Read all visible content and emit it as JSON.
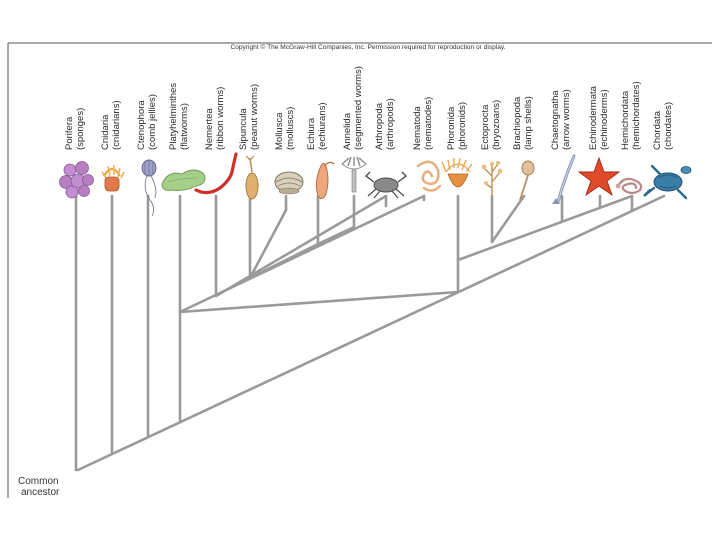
{
  "copyright": "Copyright © The McGraw-Hill Companies, Inc. Permission required for reproduction or display.",
  "root_label": [
    "Common",
    "ancestor"
  ],
  "colors": {
    "branch": "#9a9a9a",
    "frame": "#555555",
    "text": "#2a2a2a",
    "sponge": "#b77fc2",
    "cnidarian": "#e07a4a",
    "ctenophore": "#8d8fb5",
    "flatworm": "#a6cf8a",
    "nemertea": "#cf2f27",
    "sipuncula": "#e0b070",
    "mollusca": "#c9c0a6",
    "echiura": "#eda57c",
    "annelida": "#b8b8b8",
    "arthropoda": "#7d7d7d",
    "nematoda": "#e8b080",
    "phoronida": "#e69040",
    "ectoprocta": "#d9b070",
    "brachiopoda": "#d9b88f",
    "chaetognatha": "#a8b4c8",
    "echinodermata": "#e04a2a",
    "hemichordata": "#c9a0a0",
    "chordata": "#3a7ea8"
  },
  "taxa": [
    {
      "name": "Porifera",
      "common": "(sponges)",
      "icon": "sponge-icon"
    },
    {
      "name": "Cnidaria",
      "common": "(cnidarians)",
      "icon": "sea-anemone-icon"
    },
    {
      "name": "Ctenophora",
      "common": "(comb jellies)",
      "icon": "comb-jelly-icon"
    },
    {
      "name": "Platyhelminthes",
      "common": "(flatworms)",
      "icon": "flatworm-icon"
    },
    {
      "name": "Nemertea",
      "common": "(ribbon worms)",
      "icon": "ribbon-worm-icon"
    },
    {
      "name": "Sipuncula",
      "common": "(peanut worms)",
      "icon": "peanut-worm-icon"
    },
    {
      "name": "Mollusca",
      "common": "(molluscs)",
      "icon": "clam-icon"
    },
    {
      "name": "Echiura",
      "common": "(echiurans)",
      "icon": "echiuran-icon"
    },
    {
      "name": "Annelida",
      "common": "(segmented worms)",
      "icon": "fan-worm-icon"
    },
    {
      "name": "Arthropoda",
      "common": "(arthropods)",
      "icon": "crab-icon"
    },
    {
      "name": "Nematoda",
      "common": "(nematodes)",
      "icon": "nematode-icon"
    },
    {
      "name": "Phoronida",
      "common": "(phoronids)",
      "icon": "phoronid-icon"
    },
    {
      "name": "Ectoprocta",
      "common": "(bryozoans)",
      "icon": "bryozoan-icon"
    },
    {
      "name": "Brachiopoda",
      "common": "(lamp shells)",
      "icon": "lamp-shell-icon"
    },
    {
      "name": "Chaetognatha",
      "common": "(arrow worms)",
      "icon": "arrow-worm-icon"
    },
    {
      "name": "Echinodermata",
      "common": "(echinoderms)",
      "icon": "sea-star-icon"
    },
    {
      "name": "Hemichordata",
      "common": "(hemichordates)",
      "icon": "acorn-worm-icon"
    },
    {
      "name": "Chordata",
      "common": "(chordates)",
      "icon": "sea-turtle-icon"
    }
  ]
}
